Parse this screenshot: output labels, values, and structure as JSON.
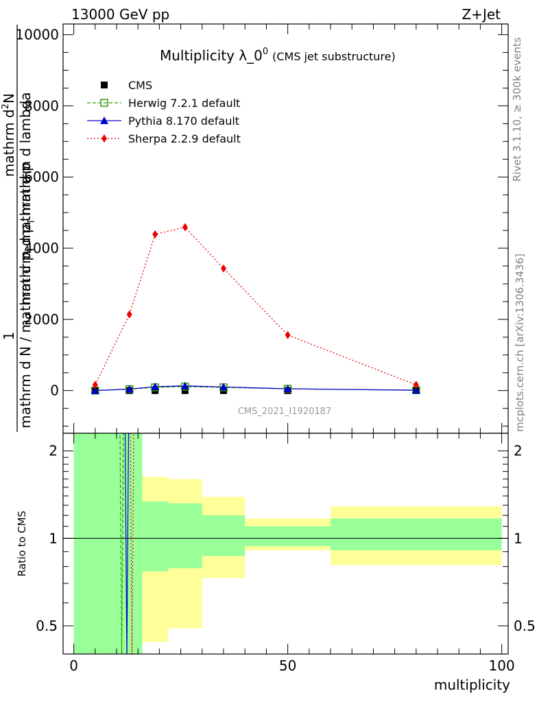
{
  "header": {
    "left": "13000 GeV pp",
    "right": "Z+Jet"
  },
  "side_labels": {
    "rivet": "Rivet 3.1.10, ≥ 300k events",
    "mcplots": "mcplots.cern.ch [arXiv:1306.3436]"
  },
  "chart_data": {
    "type": "line",
    "title_main": "Multiplicity λ_0",
    "title_sup": "0",
    "title_paren": "(CMS jet substructure)",
    "watermark": "CMS_2021_I1920187",
    "xlabel": "multiplicity",
    "ylabel": {
      "numerator": "1",
      "den_a": "mathrm d N / mathrm d p",
      "den_sub": "T",
      "den_b": "mathrm d p",
      "num_a": "mathrm d",
      "num_sup": "2",
      "num_b": "N",
      "num_c": "mathrm d p",
      "num_sub": "T",
      "num_d": "mathrm d lambda"
    },
    "xlim": [
      -2.5,
      101.5
    ],
    "ylim": [
      -1200,
      10300
    ],
    "xticks": [
      0,
      50,
      100
    ],
    "yticks": [
      0,
      2000,
      4000,
      6000,
      8000,
      10000
    ],
    "ytick_labels": [
      "0",
      "2000",
      "4000",
      "6000",
      "8000",
      "10000"
    ],
    "x": [
      5,
      13,
      19,
      26,
      35,
      50,
      80
    ],
    "series": [
      {
        "name": "CMS",
        "key": "cms",
        "color": "#000000",
        "marker": "square-filled",
        "values": [
          0,
          0,
          0,
          0,
          0,
          0,
          0
        ]
      },
      {
        "name": "Herwig 7.2.1 default",
        "key": "herwig",
        "color": "#339900",
        "marker": "square-open",
        "dash": "dashed",
        "values": [
          0,
          40,
          90,
          110,
          90,
          50,
          10
        ]
      },
      {
        "name": "Pythia 8.170 default",
        "key": "pythia",
        "color": "#0000cc",
        "marker": "triangle",
        "dash": "solid",
        "values": [
          0,
          40,
          110,
          130,
          100,
          50,
          10
        ]
      },
      {
        "name": "Sherpa 2.2.9 default",
        "key": "sherpa",
        "color": "#ee0000",
        "marker": "diamond",
        "dash": "dotted",
        "values": [
          160,
          2140,
          4390,
          4590,
          3430,
          1560,
          160
        ]
      }
    ],
    "ratio": {
      "ylabel": "Ratio to CMS",
      "ylog": true,
      "ylim": [
        0.4,
        2.3
      ],
      "yticks": [
        0.5,
        1,
        2
      ],
      "ytick_labels": [
        "0.5",
        "1",
        "2"
      ],
      "band_edges": [
        0,
        16,
        22,
        30,
        40,
        60,
        100
      ],
      "yellow_lo": [
        0.4,
        0.44,
        0.49,
        0.73,
        0.91,
        0.81
      ],
      "yellow_hi": [
        2.3,
        1.63,
        1.6,
        1.39,
        1.17,
        1.29
      ],
      "green_lo": [
        0.4,
        0.77,
        0.79,
        0.87,
        0.94,
        0.91
      ],
      "green_hi": [
        2.3,
        1.34,
        1.32,
        1.2,
        1.1,
        1.17
      ],
      "spike_series": [
        "herwig",
        "pythia",
        "sherpa"
      ],
      "spike_x": [
        11.2,
        12.4,
        13.6
      ]
    },
    "legend_position": "top-left"
  }
}
